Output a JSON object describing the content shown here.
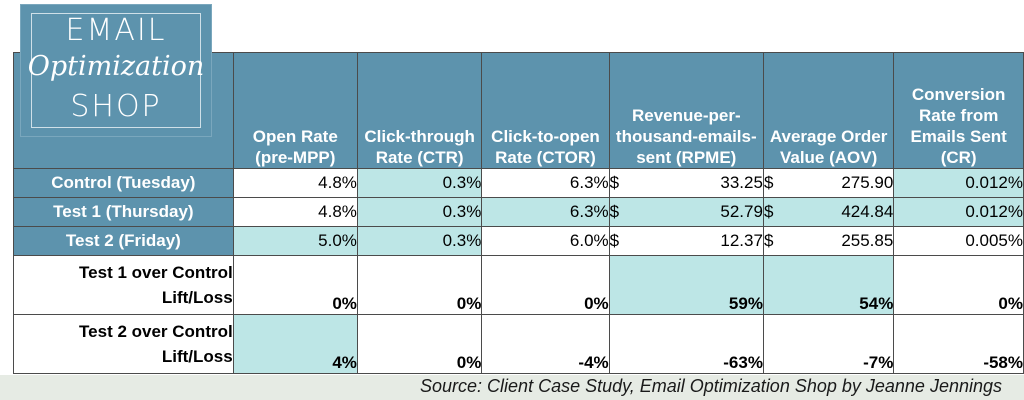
{
  "logo": {
    "line1": "EMAIL",
    "line2": "Optimization",
    "line3": "SHOP"
  },
  "table": {
    "headers": [
      "Open Rate (pre-MPP)",
      "Click-through Rate (CTR)",
      "Click-to-open Rate (CTOR)",
      "Revenue-per-thousand-emails-sent (RPME)",
      "Average Order Value (AOV)",
      "Conversion Rate from Emails Sent (CR)"
    ],
    "rows": [
      {
        "label": "Control (Tuesday)",
        "open": "4.8%",
        "ctr": "0.3%",
        "ctor": "6.3%",
        "rpme": "33.25",
        "aov": "275.90",
        "cr": "0.012%"
      },
      {
        "label": "Test 1 (Thursday)",
        "open": "4.8%",
        "ctr": "0.3%",
        "ctor": "6.3%",
        "rpme": "52.79",
        "aov": "424.84",
        "cr": "0.012%"
      },
      {
        "label": "Test 2 (Friday)",
        "open": "5.0%",
        "ctr": "0.3%",
        "ctor": "6.0%",
        "rpme": "12.37",
        "aov": "255.85",
        "cr": "0.005%"
      }
    ],
    "currency_symbol": "$",
    "lifts": [
      {
        "label_line1": "Test 1 over Control",
        "label_line2": "Lift/Loss",
        "values": [
          "0%",
          "0%",
          "0%",
          "59%",
          "54%",
          "0%"
        ]
      },
      {
        "label_line1": "Test 2 over Control",
        "label_line2": "Lift/Loss",
        "values": [
          "4%",
          "0%",
          "-4%",
          "-63%",
          "-7%",
          "-58%"
        ]
      }
    ]
  },
  "colors": {
    "header_blue": "#5d93ad",
    "highlight_teal": "#bde6e6",
    "footer_bg": "#e6ebe4"
  },
  "footer": {
    "source": "Source: Client Case Study, Email Optimization Shop by Jeanne Jennings"
  }
}
